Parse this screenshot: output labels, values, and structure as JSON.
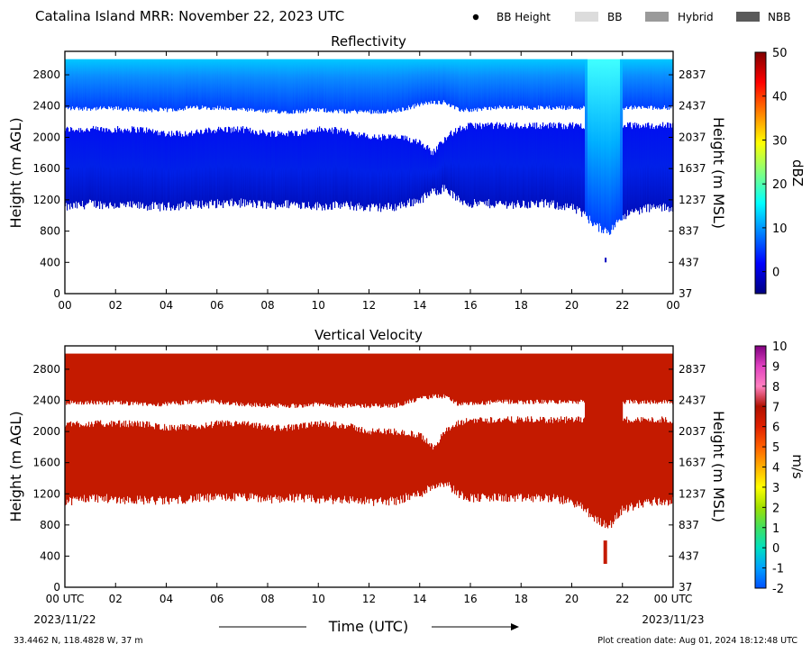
{
  "header": {
    "title": "Catalina Island MRR:  November 22, 2023 UTC",
    "legend": [
      {
        "label": "BB Height",
        "swatch": "dot",
        "color": "#000000"
      },
      {
        "label": "BB",
        "swatch": "rect",
        "color": "#dcdcdc"
      },
      {
        "label": "Hybrid",
        "swatch": "rect",
        "color": "#9a9a9a"
      },
      {
        "label": "NBB",
        "swatch": "rect",
        "color": "#5a5a5a"
      }
    ]
  },
  "footer": {
    "location": "33.4462 N, 118.4828 W, 37 m",
    "creation": "Plot creation date: Aug 01, 2024 18:12:48 UTC",
    "xlabel": "Time (UTC)",
    "start_date": "2023/11/22",
    "end_date": "2023/11/23"
  },
  "chart_data": [
    {
      "type": "heatmap",
      "title": "Reflectivity",
      "xlabel": "",
      "ylabel": "Height (m AGL)",
      "ylabel_right": "Height (m MSL)",
      "x_tick_labels": [
        "00",
        "02",
        "04",
        "06",
        "08",
        "10",
        "12",
        "14",
        "16",
        "18",
        "20",
        "22",
        "00"
      ],
      "xlim_hours": [
        0,
        24
      ],
      "ylim": [
        0,
        3100
      ],
      "y_ticks": [
        0,
        400,
        800,
        1200,
        1600,
        2000,
        2400,
        2800
      ],
      "y_ticks_right": [
        37,
        437,
        837,
        1237,
        1637,
        2037,
        2437,
        2837
      ],
      "colorbar": {
        "label": "dBZ",
        "range": [
          -5,
          50
        ],
        "ticks": [
          0,
          10,
          20,
          30,
          40,
          50
        ],
        "colors": [
          "#000080",
          "#0000ff",
          "#0080ff",
          "#00ffff",
          "#80ff80",
          "#ffff00",
          "#ff8000",
          "#ff0000",
          "#800000"
        ]
      },
      "echo_profile": {
        "hours": [
          0,
          1,
          2,
          3,
          4,
          5,
          6,
          7,
          8,
          9,
          10,
          11,
          12,
          13,
          14,
          14.5,
          15,
          15.5,
          16,
          17,
          18,
          19,
          20,
          20.5,
          21,
          21.5,
          22,
          23,
          24
        ],
        "top_m": [
          3000,
          3000,
          3000,
          3000,
          3000,
          3000,
          3000,
          3000,
          3000,
          3000,
          3000,
          3000,
          3000,
          3000,
          3000,
          3000,
          3000,
          3000,
          3000,
          3000,
          3000,
          3000,
          3000,
          3000,
          3000,
          3000,
          3000,
          3000,
          3000
        ],
        "base_m": [
          1100,
          1150,
          1130,
          1120,
          1110,
          1140,
          1150,
          1160,
          1130,
          1150,
          1120,
          1130,
          1100,
          1110,
          1200,
          1300,
          1350,
          1200,
          1150,
          1150,
          1140,
          1150,
          1100,
          1000,
          850,
          800,
          1000,
          1100,
          1100
        ],
        "gap_bottom_m": [
          2100,
          2100,
          2100,
          2100,
          2050,
          2050,
          2100,
          2100,
          2050,
          2050,
          2100,
          2080,
          2000,
          2000,
          1950,
          1800,
          2000,
          2100,
          2150,
          2150,
          2150,
          2150,
          2150,
          2150,
          null,
          null,
          2150,
          2150,
          2150
        ],
        "gap_top_m": [
          2370,
          2370,
          2370,
          2350,
          2350,
          2380,
          2380,
          2350,
          2330,
          2330,
          2350,
          2330,
          2330,
          2330,
          2420,
          2450,
          2450,
          2350,
          2350,
          2380,
          2380,
          2380,
          2380,
          2380,
          null,
          null,
          2380,
          2380,
          2380
        ]
      },
      "values_dbz": {
        "upper_layer": 5,
        "lower_layer": 0,
        "column_21h": 12
      }
    },
    {
      "type": "heatmap",
      "title": "Vertical Velocity",
      "xlabel": "Time (UTC)",
      "ylabel": "Height (m AGL)",
      "ylabel_right": "Height (m MSL)",
      "x_tick_labels": [
        "00 UTC",
        "02",
        "04",
        "06",
        "08",
        "10",
        "12",
        "14",
        "16",
        "18",
        "20",
        "22",
        "00 UTC"
      ],
      "xlim_hours": [
        0,
        24
      ],
      "ylim": [
        0,
        3100
      ],
      "y_ticks": [
        0,
        400,
        800,
        1200,
        1600,
        2000,
        2400,
        2800
      ],
      "y_ticks_right": [
        37,
        437,
        837,
        1237,
        1637,
        2037,
        2437,
        2837
      ],
      "colorbar": {
        "label": "m/s",
        "range": [
          -2,
          10
        ],
        "ticks": [
          -2,
          -1,
          0,
          1,
          2,
          3,
          4,
          5,
          6,
          7,
          8,
          9,
          10
        ],
        "colors": [
          "#0050ff",
          "#00a0ff",
          "#00e0c0",
          "#40e060",
          "#a0e000",
          "#ffff00",
          "#ffb000",
          "#ff6000",
          "#e02000",
          "#b01000",
          "#ff80c0",
          "#e040c0",
          "#800080"
        ]
      },
      "values_ms": {
        "dominant": 5.5
      }
    }
  ]
}
